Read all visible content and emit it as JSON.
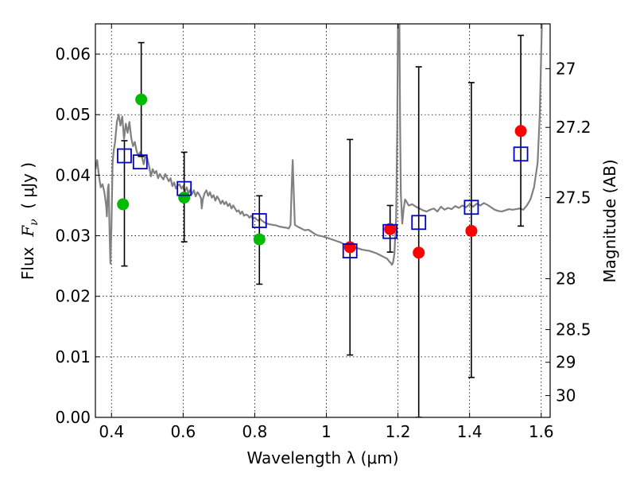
{
  "chart_data": {
    "type": "scatter",
    "xlabel": "Wavelength  λ (μm)",
    "ylabel": "Flux  F_ν  ( μJy )",
    "ylabel_parts": {
      "prefix": "Flux  ",
      "symbol": "F",
      "subscript": "ν",
      "suffix": "  ( μJy )"
    },
    "y2label": "Magnitude (AB)",
    "xlim": [
      0.355,
      1.625
    ],
    "ylim": [
      0.0,
      0.065
    ],
    "grid": true,
    "x_ticks": [
      {
        "value": 0.4,
        "label": "0.4"
      },
      {
        "value": 0.6,
        "label": "0.6"
      },
      {
        "value": 0.8,
        "label": "0.8"
      },
      {
        "value": 1.0,
        "label": "1"
      },
      {
        "value": 1.2,
        "label": "1.2"
      },
      {
        "value": 1.4,
        "label": "1.4"
      },
      {
        "value": 1.6,
        "label": "1.6"
      }
    ],
    "y_ticks": [
      {
        "value": 0.0,
        "label": "0.00"
      },
      {
        "value": 0.01,
        "label": "0.01"
      },
      {
        "value": 0.02,
        "label": "0.02"
      },
      {
        "value": 0.03,
        "label": "0.03"
      },
      {
        "value": 0.04,
        "label": "0.04"
      },
      {
        "value": 0.05,
        "label": "0.05"
      },
      {
        "value": 0.06,
        "label": "0.06"
      }
    ],
    "mag_ticks": [
      {
        "label": "27",
        "flux": 0.0576
      },
      {
        "label": "27.2",
        "flux": 0.0479
      },
      {
        "label": "27.5",
        "flux": 0.0363
      },
      {
        "label": "28",
        "flux": 0.0229
      },
      {
        "label": "28.5",
        "flux": 0.0145
      },
      {
        "label": "29",
        "flux": 0.0091
      },
      {
        "label": "30",
        "flux": 0.0036
      }
    ],
    "series": [
      {
        "name": "model-spectrum",
        "kind": "line",
        "color": "#808080",
        "points": [
          [
            0.355,
            0.041
          ],
          [
            0.36,
            0.0425
          ],
          [
            0.365,
            0.0398
          ],
          [
            0.37,
            0.038
          ],
          [
            0.375,
            0.0385
          ],
          [
            0.38,
            0.0372
          ],
          [
            0.385,
            0.035
          ],
          [
            0.387,
            0.0332
          ],
          [
            0.39,
            0.0378
          ],
          [
            0.392,
            0.0385
          ],
          [
            0.395,
            0.0295
          ],
          [
            0.397,
            0.0254
          ],
          [
            0.4,
            0.032
          ],
          [
            0.403,
            0.042
          ],
          [
            0.406,
            0.044
          ],
          [
            0.41,
            0.0455
          ],
          [
            0.415,
            0.0488
          ],
          [
            0.42,
            0.05
          ],
          [
            0.425,
            0.0482
          ],
          [
            0.43,
            0.0497
          ],
          [
            0.435,
            0.046
          ],
          [
            0.44,
            0.0485
          ],
          [
            0.445,
            0.047
          ],
          [
            0.45,
            0.0488
          ],
          [
            0.455,
            0.0462
          ],
          [
            0.46,
            0.0448
          ],
          [
            0.465,
            0.0455
          ],
          [
            0.47,
            0.044
          ],
          [
            0.475,
            0.0432
          ],
          [
            0.48,
            0.0438
          ],
          [
            0.485,
            0.043
          ],
          [
            0.49,
            0.0418
          ],
          [
            0.495,
            0.0432
          ],
          [
            0.5,
            0.0428
          ],
          [
            0.505,
            0.0415
          ],
          [
            0.51,
            0.0398
          ],
          [
            0.515,
            0.041
          ],
          [
            0.52,
            0.0403
          ],
          [
            0.525,
            0.0407
          ],
          [
            0.53,
            0.0395
          ],
          [
            0.535,
            0.0402
          ],
          [
            0.54,
            0.0397
          ],
          [
            0.545,
            0.0393
          ],
          [
            0.55,
            0.0402
          ],
          [
            0.555,
            0.0396
          ],
          [
            0.56,
            0.039
          ],
          [
            0.565,
            0.0395
          ],
          [
            0.57,
            0.0382
          ],
          [
            0.575,
            0.0388
          ],
          [
            0.58,
            0.0378
          ],
          [
            0.585,
            0.0383
          ],
          [
            0.59,
            0.0385
          ],
          [
            0.595,
            0.0378
          ],
          [
            0.6,
            0.0382
          ],
          [
            0.605,
            0.0373
          ],
          [
            0.61,
            0.038
          ],
          [
            0.615,
            0.037
          ],
          [
            0.62,
            0.0376
          ],
          [
            0.625,
            0.0369
          ],
          [
            0.63,
            0.0375
          ],
          [
            0.635,
            0.0365
          ],
          [
            0.64,
            0.0372
          ],
          [
            0.645,
            0.0368
          ],
          [
            0.65,
            0.0362
          ],
          [
            0.652,
            0.0345
          ],
          [
            0.655,
            0.036
          ],
          [
            0.66,
            0.037
          ],
          [
            0.665,
            0.0375
          ],
          [
            0.67,
            0.0366
          ],
          [
            0.675,
            0.0372
          ],
          [
            0.68,
            0.0363
          ],
          [
            0.685,
            0.0367
          ],
          [
            0.69,
            0.0358
          ],
          [
            0.695,
            0.0365
          ],
          [
            0.7,
            0.036
          ],
          [
            0.705,
            0.0353
          ],
          [
            0.71,
            0.0358
          ],
          [
            0.715,
            0.0352
          ],
          [
            0.72,
            0.0356
          ],
          [
            0.725,
            0.0349
          ],
          [
            0.73,
            0.0353
          ],
          [
            0.735,
            0.0345
          ],
          [
            0.74,
            0.035
          ],
          [
            0.745,
            0.0345
          ],
          [
            0.75,
            0.034
          ],
          [
            0.755,
            0.0342
          ],
          [
            0.76,
            0.0336
          ],
          [
            0.765,
            0.034
          ],
          [
            0.77,
            0.0333
          ],
          [
            0.775,
            0.0335
          ],
          [
            0.78,
            0.0334
          ],
          [
            0.785,
            0.033
          ],
          [
            0.79,
            0.0333
          ],
          [
            0.795,
            0.0328
          ],
          [
            0.8,
            0.033
          ],
          [
            0.805,
            0.0327
          ],
          [
            0.81,
            0.0325
          ],
          [
            0.815,
            0.0328
          ],
          [
            0.82,
            0.0325
          ],
          [
            0.83,
            0.0321
          ],
          [
            0.84,
            0.0319
          ],
          [
            0.85,
            0.0318
          ],
          [
            0.86,
            0.0317
          ],
          [
            0.87,
            0.0315
          ],
          [
            0.88,
            0.0314
          ],
          [
            0.89,
            0.0313
          ],
          [
            0.895,
            0.0312
          ],
          [
            0.9,
            0.0318
          ],
          [
            0.903,
            0.0378
          ],
          [
            0.906,
            0.0425
          ],
          [
            0.909,
            0.037
          ],
          [
            0.912,
            0.0318
          ],
          [
            0.92,
            0.0315
          ],
          [
            0.93,
            0.0312
          ],
          [
            0.94,
            0.0309
          ],
          [
            0.95,
            0.031
          ],
          [
            0.96,
            0.0306
          ],
          [
            0.97,
            0.0302
          ],
          [
            0.98,
            0.03
          ],
          [
            0.99,
            0.0299
          ],
          [
            1.0,
            0.0297
          ],
          [
            1.01,
            0.0295
          ],
          [
            1.02,
            0.0293
          ],
          [
            1.03,
            0.0291
          ],
          [
            1.04,
            0.0289
          ],
          [
            1.05,
            0.0286
          ],
          [
            1.06,
            0.0284
          ],
          [
            1.07,
            0.0282
          ],
          [
            1.08,
            0.028
          ],
          [
            1.09,
            0.0279
          ],
          [
            1.1,
            0.0277
          ],
          [
            1.11,
            0.0276
          ],
          [
            1.12,
            0.0275
          ],
          [
            1.13,
            0.0273
          ],
          [
            1.14,
            0.0271
          ],
          [
            1.15,
            0.0268
          ],
          [
            1.16,
            0.0265
          ],
          [
            1.17,
            0.0262
          ],
          [
            1.175,
            0.0258
          ],
          [
            1.18,
            0.0255
          ],
          [
            1.183,
            0.0252
          ],
          [
            1.186,
            0.0255
          ],
          [
            1.19,
            0.027
          ],
          [
            1.195,
            0.033
          ],
          [
            1.198,
            0.048
          ],
          [
            1.2,
            0.065
          ],
          [
            1.204,
            0.065
          ],
          [
            1.206,
            0.048
          ],
          [
            1.208,
            0.037
          ],
          [
            1.212,
            0.032
          ],
          [
            1.216,
            0.0345
          ],
          [
            1.22,
            0.036
          ],
          [
            1.23,
            0.035
          ],
          [
            1.24,
            0.0352
          ],
          [
            1.25,
            0.0348
          ],
          [
            1.26,
            0.0345
          ],
          [
            1.27,
            0.0342
          ],
          [
            1.28,
            0.034
          ],
          [
            1.29,
            0.0343
          ],
          [
            1.3,
            0.0345
          ],
          [
            1.31,
            0.034
          ],
          [
            1.32,
            0.0348
          ],
          [
            1.33,
            0.0343
          ],
          [
            1.34,
            0.0346
          ],
          [
            1.35,
            0.0344
          ],
          [
            1.36,
            0.0349
          ],
          [
            1.37,
            0.0346
          ],
          [
            1.38,
            0.035
          ],
          [
            1.39,
            0.0347
          ],
          [
            1.4,
            0.0352
          ],
          [
            1.41,
            0.0348
          ],
          [
            1.42,
            0.0353
          ],
          [
            1.43,
            0.035
          ],
          [
            1.44,
            0.0354
          ],
          [
            1.45,
            0.0351
          ],
          [
            1.46,
            0.0347
          ],
          [
            1.47,
            0.0343
          ],
          [
            1.48,
            0.0341
          ],
          [
            1.49,
            0.034
          ],
          [
            1.5,
            0.0342
          ],
          [
            1.51,
            0.0344
          ],
          [
            1.52,
            0.0343
          ],
          [
            1.53,
            0.0344
          ],
          [
            1.54,
            0.0345
          ],
          [
            1.55,
            0.0343
          ],
          [
            1.56,
            0.035
          ],
          [
            1.57,
            0.036
          ],
          [
            1.58,
            0.038
          ],
          [
            1.59,
            0.042
          ],
          [
            1.596,
            0.05
          ],
          [
            1.6,
            0.06
          ],
          [
            1.602,
            0.065
          ]
        ]
      },
      {
        "name": "green-observed",
        "kind": "points",
        "color": "#00bb00",
        "points": [
          [
            0.432,
            0.0352
          ],
          [
            0.483,
            0.0525
          ],
          [
            0.603,
            0.0363
          ],
          [
            0.813,
            0.0294
          ]
        ]
      },
      {
        "name": "red-observed",
        "kind": "points",
        "color": "#ff0000",
        "points": [
          [
            1.066,
            0.0281
          ],
          [
            1.178,
            0.0311
          ],
          [
            1.258,
            0.0272
          ],
          [
            1.405,
            0.0308
          ],
          [
            1.543,
            0.0473
          ]
        ]
      },
      {
        "name": "model-photometry",
        "kind": "squares",
        "color": "#0000cc",
        "points": [
          [
            0.436,
            0.0432
          ],
          [
            0.48,
            0.0422
          ],
          [
            0.603,
            0.0378
          ],
          [
            0.813,
            0.0325
          ],
          [
            1.066,
            0.0275
          ],
          [
            1.178,
            0.0307
          ],
          [
            1.258,
            0.0322
          ],
          [
            1.405,
            0.0347
          ],
          [
            1.543,
            0.0435
          ]
        ]
      },
      {
        "name": "errorbars",
        "kind": "errorbar",
        "color": "#000000",
        "bars": [
          {
            "x": 0.436,
            "low": 0.025,
            "high": 0.0457
          },
          {
            "x": 0.483,
            "low": 0.0431,
            "high": 0.0619
          },
          {
            "x": 0.603,
            "low": 0.029,
            "high": 0.0438
          },
          {
            "x": 0.813,
            "low": 0.022,
            "high": 0.0366
          },
          {
            "x": 1.066,
            "low": 0.0103,
            "high": 0.0459
          },
          {
            "x": 1.178,
            "low": 0.0273,
            "high": 0.035
          },
          {
            "x": 1.258,
            "low": 0.0,
            "high": 0.0579
          },
          {
            "x": 1.405,
            "low": 0.0066,
            "high": 0.0553
          },
          {
            "x": 1.543,
            "low": 0.0316,
            "high": 0.0631
          }
        ]
      }
    ]
  }
}
